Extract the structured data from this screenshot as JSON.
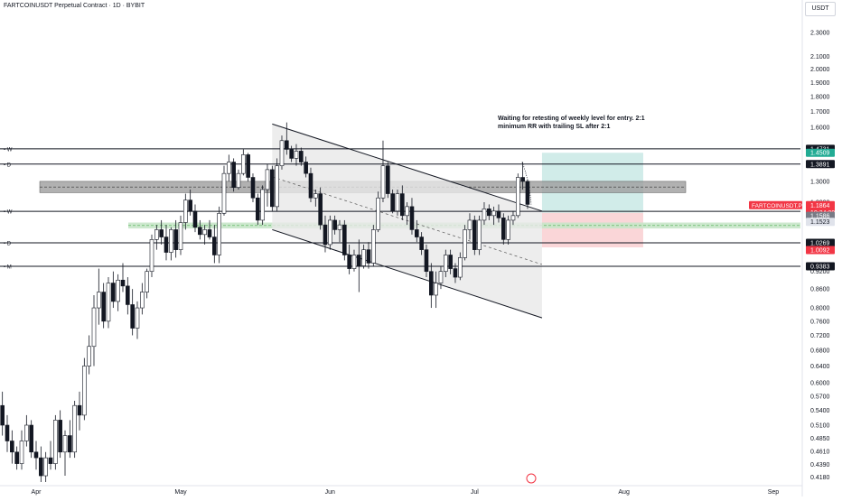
{
  "header": {
    "title": "FARTCOINUSDT Perpetual Contract · 1D · BYBIT",
    "currency": "USDT"
  },
  "annotation": {
    "line1": "Waiting for retesting of weekly level for entry. 2:1",
    "line2": "minimum RR with trailing SL after 2:1"
  },
  "chart_data": {
    "type": "candlestick",
    "symbol": "FARTCOINUSDT.P",
    "scale": "log",
    "ylim": [
      0.41,
      2.45
    ],
    "y_ticks": [
      "2.3000",
      "2.1000",
      "2.0000",
      "1.9000",
      "1.8000",
      "1.7000",
      "1.6000",
      "1.3000",
      "1.2000",
      "0.9200",
      "0.8600",
      "0.8000",
      "0.7600",
      "0.7200",
      "0.6800",
      "0.6400",
      "0.6000",
      "0.5700",
      "0.5400",
      "0.5100",
      "0.4850",
      "0.4610",
      "0.4390",
      "0.4180"
    ],
    "x_ticks": [
      {
        "label": "Apr",
        "date": "2025-04-01"
      },
      {
        "label": "May",
        "date": "2025-05-01"
      },
      {
        "label": "Jun",
        "date": "2025-06-01"
      },
      {
        "label": "Jul",
        "date": "2025-07-01"
      },
      {
        "label": "Aug",
        "date": "2025-08-01"
      },
      {
        "label": "Sep",
        "date": "2025-09-01"
      }
    ],
    "candles": [
      {
        "date": "2025-03-23",
        "o": 0.455,
        "h": 0.64,
        "l": 0.43,
        "c": 0.6
      },
      {
        "date": "2025-03-24",
        "o": 0.6,
        "h": 0.62,
        "l": 0.53,
        "c": 0.55
      },
      {
        "date": "2025-03-25",
        "o": 0.55,
        "h": 0.58,
        "l": 0.49,
        "c": 0.51
      },
      {
        "date": "2025-03-26",
        "o": 0.51,
        "h": 0.53,
        "l": 0.46,
        "c": 0.48
      },
      {
        "date": "2025-03-27",
        "o": 0.48,
        "h": 0.5,
        "l": 0.44,
        "c": 0.46
      },
      {
        "date": "2025-03-28",
        "o": 0.46,
        "h": 0.47,
        "l": 0.43,
        "c": 0.44
      },
      {
        "date": "2025-03-29",
        "o": 0.44,
        "h": 0.5,
        "l": 0.43,
        "c": 0.48
      },
      {
        "date": "2025-03-30",
        "o": 0.48,
        "h": 0.53,
        "l": 0.47,
        "c": 0.51
      },
      {
        "date": "2025-03-31",
        "o": 0.51,
        "h": 0.52,
        "l": 0.45,
        "c": 0.46
      },
      {
        "date": "2025-04-01",
        "o": 0.46,
        "h": 0.48,
        "l": 0.43,
        "c": 0.45
      },
      {
        "date": "2025-04-02",
        "o": 0.45,
        "h": 0.47,
        "l": 0.41,
        "c": 0.42
      },
      {
        "date": "2025-04-03",
        "o": 0.42,
        "h": 0.46,
        "l": 0.41,
        "c": 0.45
      },
      {
        "date": "2025-04-04",
        "o": 0.45,
        "h": 0.48,
        "l": 0.43,
        "c": 0.44
      },
      {
        "date": "2025-04-05",
        "o": 0.44,
        "h": 0.53,
        "l": 0.43,
        "c": 0.52
      },
      {
        "date": "2025-04-06",
        "o": 0.52,
        "h": 0.54,
        "l": 0.45,
        "c": 0.46
      },
      {
        "date": "2025-04-07",
        "o": 0.46,
        "h": 0.5,
        "l": 0.42,
        "c": 0.49
      },
      {
        "date": "2025-04-08",
        "o": 0.49,
        "h": 0.52,
        "l": 0.45,
        "c": 0.46
      },
      {
        "date": "2025-04-09",
        "o": 0.46,
        "h": 0.56,
        "l": 0.45,
        "c": 0.55
      },
      {
        "date": "2025-04-10",
        "o": 0.55,
        "h": 0.58,
        "l": 0.5,
        "c": 0.53
      },
      {
        "date": "2025-04-11",
        "o": 0.53,
        "h": 0.66,
        "l": 0.52,
        "c": 0.64
      },
      {
        "date": "2025-04-12",
        "o": 0.64,
        "h": 0.72,
        "l": 0.62,
        "c": 0.69
      },
      {
        "date": "2025-04-13",
        "o": 0.69,
        "h": 0.84,
        "l": 0.64,
        "c": 0.8
      },
      {
        "date": "2025-04-14",
        "o": 0.8,
        "h": 0.93,
        "l": 0.75,
        "c": 0.85
      },
      {
        "date": "2025-04-15",
        "o": 0.85,
        "h": 0.88,
        "l": 0.74,
        "c": 0.76
      },
      {
        "date": "2025-04-16",
        "o": 0.76,
        "h": 0.9,
        "l": 0.74,
        "c": 0.88
      },
      {
        "date": "2025-04-17",
        "o": 0.88,
        "h": 0.92,
        "l": 0.8,
        "c": 0.82
      },
      {
        "date": "2025-04-18",
        "o": 0.82,
        "h": 0.91,
        "l": 0.79,
        "c": 0.89
      },
      {
        "date": "2025-04-19",
        "o": 0.89,
        "h": 0.95,
        "l": 0.85,
        "c": 0.87
      },
      {
        "date": "2025-04-20",
        "o": 0.87,
        "h": 0.9,
        "l": 0.78,
        "c": 0.81
      },
      {
        "date": "2025-04-21",
        "o": 0.81,
        "h": 0.86,
        "l": 0.72,
        "c": 0.74
      },
      {
        "date": "2025-04-22",
        "o": 0.74,
        "h": 0.82,
        "l": 0.71,
        "c": 0.8
      },
      {
        "date": "2025-04-23",
        "o": 0.8,
        "h": 0.88,
        "l": 0.78,
        "c": 0.85
      },
      {
        "date": "2025-04-24",
        "o": 0.85,
        "h": 0.93,
        "l": 0.83,
        "c": 0.92
      },
      {
        "date": "2025-04-25",
        "o": 0.92,
        "h": 1.06,
        "l": 0.9,
        "c": 1.04
      },
      {
        "date": "2025-04-26",
        "o": 1.04,
        "h": 1.1,
        "l": 1.0,
        "c": 1.08
      },
      {
        "date": "2025-04-27",
        "o": 1.08,
        "h": 1.12,
        "l": 1.02,
        "c": 1.05
      },
      {
        "date": "2025-04-28",
        "o": 1.05,
        "h": 1.1,
        "l": 0.96,
        "c": 0.99
      },
      {
        "date": "2025-04-29",
        "o": 0.99,
        "h": 1.09,
        "l": 0.96,
        "c": 1.08
      },
      {
        "date": "2025-04-30",
        "o": 1.08,
        "h": 1.12,
        "l": 0.97,
        "c": 1.0
      },
      {
        "date": "2025-05-01",
        "o": 1.0,
        "h": 1.14,
        "l": 0.98,
        "c": 1.11
      },
      {
        "date": "2025-05-02",
        "o": 1.11,
        "h": 1.24,
        "l": 1.08,
        "c": 1.21
      },
      {
        "date": "2025-05-03",
        "o": 1.21,
        "h": 1.26,
        "l": 1.14,
        "c": 1.16
      },
      {
        "date": "2025-05-04",
        "o": 1.16,
        "h": 1.19,
        "l": 1.07,
        "c": 1.09
      },
      {
        "date": "2025-05-05",
        "o": 1.09,
        "h": 1.12,
        "l": 1.04,
        "c": 1.06
      },
      {
        "date": "2025-05-06",
        "o": 1.06,
        "h": 1.1,
        "l": 1.02,
        "c": 1.08
      },
      {
        "date": "2025-05-07",
        "o": 1.08,
        "h": 1.12,
        "l": 1.04,
        "c": 1.05
      },
      {
        "date": "2025-05-08",
        "o": 1.05,
        "h": 1.1,
        "l": 0.95,
        "c": 0.98
      },
      {
        "date": "2025-05-09",
        "o": 0.98,
        "h": 1.18,
        "l": 0.95,
        "c": 1.15
      },
      {
        "date": "2025-05-10",
        "o": 1.15,
        "h": 1.38,
        "l": 1.14,
        "c": 1.34
      },
      {
        "date": "2025-05-11",
        "o": 1.34,
        "h": 1.44,
        "l": 1.3,
        "c": 1.4
      },
      {
        "date": "2025-05-12",
        "o": 1.4,
        "h": 1.42,
        "l": 1.25,
        "c": 1.27
      },
      {
        "date": "2025-05-13",
        "o": 1.27,
        "h": 1.36,
        "l": 1.26,
        "c": 1.34
      },
      {
        "date": "2025-05-14",
        "o": 1.34,
        "h": 1.47,
        "l": 1.33,
        "c": 1.44
      },
      {
        "date": "2025-05-15",
        "o": 1.44,
        "h": 1.45,
        "l": 1.3,
        "c": 1.32
      },
      {
        "date": "2025-05-16",
        "o": 1.32,
        "h": 1.34,
        "l": 1.2,
        "c": 1.22
      },
      {
        "date": "2025-05-17",
        "o": 1.22,
        "h": 1.24,
        "l": 1.1,
        "c": 1.12
      },
      {
        "date": "2025-05-18",
        "o": 1.12,
        "h": 1.28,
        "l": 1.1,
        "c": 1.26
      },
      {
        "date": "2025-05-19",
        "o": 1.26,
        "h": 1.39,
        "l": 1.18,
        "c": 1.36
      },
      {
        "date": "2025-05-20",
        "o": 1.36,
        "h": 1.38,
        "l": 1.16,
        "c": 1.18
      },
      {
        "date": "2025-05-21",
        "o": 1.18,
        "h": 1.42,
        "l": 1.16,
        "c": 1.38
      },
      {
        "date": "2025-05-22",
        "o": 1.38,
        "h": 1.55,
        "l": 1.36,
        "c": 1.52
      },
      {
        "date": "2025-05-23",
        "o": 1.52,
        "h": 1.63,
        "l": 1.44,
        "c": 1.47
      },
      {
        "date": "2025-05-24",
        "o": 1.47,
        "h": 1.49,
        "l": 1.4,
        "c": 1.42
      },
      {
        "date": "2025-05-25",
        "o": 1.42,
        "h": 1.5,
        "l": 1.38,
        "c": 1.46
      },
      {
        "date": "2025-05-26",
        "o": 1.46,
        "h": 1.48,
        "l": 1.38,
        "c": 1.4
      },
      {
        "date": "2025-05-27",
        "o": 1.4,
        "h": 1.43,
        "l": 1.32,
        "c": 1.34
      },
      {
        "date": "2025-05-28",
        "o": 1.34,
        "h": 1.37,
        "l": 1.2,
        "c": 1.22
      },
      {
        "date": "2025-05-29",
        "o": 1.22,
        "h": 1.26,
        "l": 1.18,
        "c": 1.24
      },
      {
        "date": "2025-05-30",
        "o": 1.24,
        "h": 1.27,
        "l": 1.08,
        "c": 1.1
      },
      {
        "date": "2025-05-31",
        "o": 1.1,
        "h": 1.14,
        "l": 0.99,
        "c": 1.02
      },
      {
        "date": "2025-06-01",
        "o": 1.02,
        "h": 1.14,
        "l": 1.0,
        "c": 1.12
      },
      {
        "date": "2025-06-02",
        "o": 1.12,
        "h": 1.14,
        "l": 1.06,
        "c": 1.08
      },
      {
        "date": "2025-06-03",
        "o": 1.08,
        "h": 1.12,
        "l": 1.03,
        "c": 1.1
      },
      {
        "date": "2025-06-04",
        "o": 1.1,
        "h": 1.12,
        "l": 0.96,
        "c": 0.98
      },
      {
        "date": "2025-06-05",
        "o": 0.98,
        "h": 1.02,
        "l": 0.91,
        "c": 0.93
      },
      {
        "date": "2025-06-06",
        "o": 0.93,
        "h": 1.0,
        "l": 0.92,
        "c": 0.98
      },
      {
        "date": "2025-06-07",
        "o": 0.98,
        "h": 1.04,
        "l": 0.85,
        "c": 0.94
      },
      {
        "date": "2025-06-08",
        "o": 0.94,
        "h": 1.02,
        "l": 0.93,
        "c": 1.0
      },
      {
        "date": "2025-06-09",
        "o": 1.0,
        "h": 1.03,
        "l": 0.93,
        "c": 0.95
      },
      {
        "date": "2025-06-10",
        "o": 0.95,
        "h": 1.1,
        "l": 0.94,
        "c": 1.08
      },
      {
        "date": "2025-06-11",
        "o": 1.08,
        "h": 1.25,
        "l": 1.07,
        "c": 1.22
      },
      {
        "date": "2025-06-12",
        "o": 1.22,
        "h": 1.52,
        "l": 1.2,
        "c": 1.38
      },
      {
        "date": "2025-06-13",
        "o": 1.38,
        "h": 1.4,
        "l": 1.22,
        "c": 1.24
      },
      {
        "date": "2025-06-14",
        "o": 1.24,
        "h": 1.26,
        "l": 1.15,
        "c": 1.16
      },
      {
        "date": "2025-06-15",
        "o": 1.16,
        "h": 1.26,
        "l": 1.14,
        "c": 1.24
      },
      {
        "date": "2025-06-16",
        "o": 1.24,
        "h": 1.28,
        "l": 1.12,
        "c": 1.14
      },
      {
        "date": "2025-06-17",
        "o": 1.14,
        "h": 1.2,
        "l": 1.1,
        "c": 1.18
      },
      {
        "date": "2025-06-18",
        "o": 1.18,
        "h": 1.22,
        "l": 1.06,
        "c": 1.08
      },
      {
        "date": "2025-06-19",
        "o": 1.08,
        "h": 1.12,
        "l": 1.03,
        "c": 1.05
      },
      {
        "date": "2025-06-20",
        "o": 1.05,
        "h": 1.07,
        "l": 0.98,
        "c": 1.0
      },
      {
        "date": "2025-06-21",
        "o": 1.0,
        "h": 1.02,
        "l": 0.9,
        "c": 0.92
      },
      {
        "date": "2025-06-22",
        "o": 0.92,
        "h": 0.95,
        "l": 0.8,
        "c": 0.84
      },
      {
        "date": "2025-06-23",
        "o": 0.84,
        "h": 0.92,
        "l": 0.8,
        "c": 0.88
      },
      {
        "date": "2025-06-24",
        "o": 0.88,
        "h": 0.94,
        "l": 0.86,
        "c": 0.92
      },
      {
        "date": "2025-06-25",
        "o": 0.92,
        "h": 1.0,
        "l": 0.9,
        "c": 0.98
      },
      {
        "date": "2025-06-26",
        "o": 0.98,
        "h": 1.0,
        "l": 0.91,
        "c": 0.93
      },
      {
        "date": "2025-06-27",
        "o": 0.93,
        "h": 0.95,
        "l": 0.88,
        "c": 0.9
      },
      {
        "date": "2025-06-28",
        "o": 0.9,
        "h": 0.99,
        "l": 0.89,
        "c": 0.97
      },
      {
        "date": "2025-06-29",
        "o": 0.97,
        "h": 1.1,
        "l": 0.96,
        "c": 1.08
      },
      {
        "date": "2025-06-30",
        "o": 1.08,
        "h": 1.15,
        "l": 1.04,
        "c": 1.12
      },
      {
        "date": "2025-07-01",
        "o": 1.12,
        "h": 1.14,
        "l": 0.98,
        "c": 1.0
      },
      {
        "date": "2025-07-02",
        "o": 1.0,
        "h": 1.14,
        "l": 0.98,
        "c": 1.12
      },
      {
        "date": "2025-07-03",
        "o": 1.12,
        "h": 1.2,
        "l": 1.1,
        "c": 1.17
      },
      {
        "date": "2025-07-04",
        "o": 1.17,
        "h": 1.19,
        "l": 1.12,
        "c": 1.14
      },
      {
        "date": "2025-07-05",
        "o": 1.14,
        "h": 1.18,
        "l": 1.1,
        "c": 1.16
      },
      {
        "date": "2025-07-06",
        "o": 1.16,
        "h": 1.19,
        "l": 1.11,
        "c": 1.13
      },
      {
        "date": "2025-07-07",
        "o": 1.13,
        "h": 1.15,
        "l": 1.02,
        "c": 1.04
      },
      {
        "date": "2025-07-08",
        "o": 1.04,
        "h": 1.14,
        "l": 1.02,
        "c": 1.12
      },
      {
        "date": "2025-07-09",
        "o": 1.12,
        "h": 1.16,
        "l": 1.1,
        "c": 1.14
      },
      {
        "date": "2025-07-10",
        "o": 1.14,
        "h": 1.34,
        "l": 1.13,
        "c": 1.32
      },
      {
        "date": "2025-07-11",
        "o": 1.32,
        "h": 1.4,
        "l": 1.26,
        "c": 1.3
      },
      {
        "date": "2025-07-12",
        "o": 1.3,
        "h": 1.31,
        "l": 1.17,
        "c": 1.19
      }
    ],
    "levels": [
      {
        "label": "W",
        "price": 1.4731,
        "color": "#131722"
      },
      {
        "label": "D",
        "price": 1.3891,
        "color": "#131722"
      },
      {
        "label": "W",
        "price": 1.1586,
        "color": "#131722"
      },
      {
        "label": "D",
        "price": 1.0269,
        "color": "#131722"
      },
      {
        "label": "M",
        "price": 0.9383,
        "color": "#131722"
      }
    ],
    "price_labels": [
      {
        "text": "1.4731",
        "bg": "#131722",
        "fg": "#ffffff"
      },
      {
        "text": "1.4509",
        "bg": "#22ab94",
        "fg": "#ffffff"
      },
      {
        "text": "1.3891",
        "bg": "#131722",
        "fg": "#ffffff"
      },
      {
        "text": "FARTCOINUSDT.P",
        "bg": "#f23645",
        "fg": "#ffffff"
      },
      {
        "text": "1.1864",
        "bg": "#f23645",
        "fg": "#ffffff"
      },
      {
        "text": "10:34:09",
        "bg": "#f23645",
        "fg": "#ffffff"
      },
      {
        "text": "1.1586",
        "bg": "#787b86",
        "fg": "#ffffff"
      },
      {
        "text": "1.1523",
        "bg": "#e0e3eb",
        "fg": "#131722"
      },
      {
        "text": "1.0269",
        "bg": "#131722",
        "fg": "#ffffff"
      },
      {
        "text": "1.0092",
        "bg": "#f23645",
        "fg": "#ffffff"
      },
      {
        "text": "0.9383",
        "bg": "#131722",
        "fg": "#ffffff"
      }
    ],
    "channel": {
      "upper": [
        {
          "date": "2025-05-20",
          "price": 1.62
        },
        {
          "date": "2025-07-15",
          "price": 1.16
        }
      ],
      "lower": [
        {
          "date": "2025-05-20",
          "price": 1.08
        },
        {
          "date": "2025-07-15",
          "price": 0.77
        }
      ],
      "fill": "#e8e8e8"
    },
    "zones": [
      {
        "kind": "resistance",
        "from": 1.245,
        "to": 1.3,
        "color": "#9e9e9e"
      },
      {
        "kind": "support",
        "from": 1.085,
        "to": 1.11,
        "color": "#c8e6c9"
      }
    ],
    "position": {
      "entry": 1.1523,
      "target": 1.4509,
      "stop": 1.0092,
      "start": "2025-07-15",
      "end": "2025-08-05",
      "profit_color": "#b2dfdb",
      "loss_color": "#f8c4c8"
    },
    "colors": {
      "up": "#131722",
      "down": "#131722",
      "up_fill": "#ffffff",
      "down_fill": "#131722"
    }
  }
}
